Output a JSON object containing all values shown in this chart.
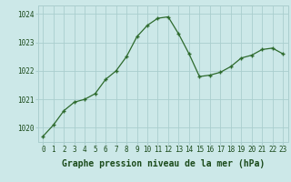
{
  "x": [
    0,
    1,
    2,
    3,
    4,
    5,
    6,
    7,
    8,
    9,
    10,
    11,
    12,
    13,
    14,
    15,
    16,
    17,
    18,
    19,
    20,
    21,
    22,
    23
  ],
  "y": [
    1019.7,
    1020.1,
    1020.6,
    1020.9,
    1021.0,
    1021.2,
    1021.7,
    1022.0,
    1022.5,
    1023.2,
    1023.6,
    1023.85,
    1023.9,
    1023.3,
    1022.6,
    1021.8,
    1021.85,
    1021.95,
    1022.15,
    1022.45,
    1022.55,
    1022.75,
    1022.8,
    1022.6
  ],
  "line_color": "#2d6a2d",
  "marker": "+",
  "bg_color": "#cce8e8",
  "grid_color": "#aacece",
  "xlabel": "Graphe pression niveau de la mer (hPa)",
  "xlabel_fontsize": 7,
  "ylabel_ticks": [
    1020,
    1021,
    1022,
    1023,
    1024
  ],
  "xlim": [
    -0.5,
    23.5
  ],
  "ylim": [
    1019.5,
    1024.3
  ],
  "tick_fontsize": 5.5,
  "label_color": "#1a4a1a"
}
